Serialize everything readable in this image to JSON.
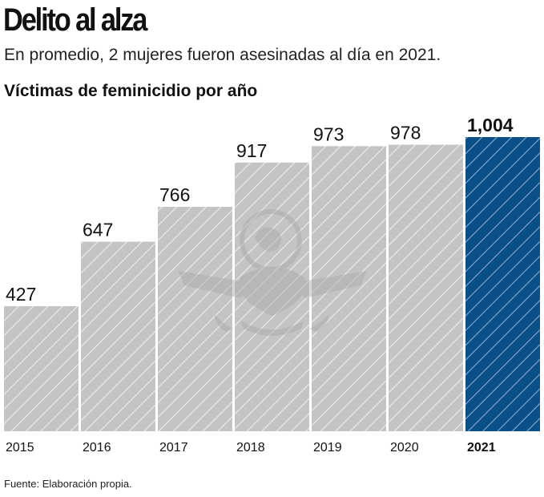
{
  "header": {
    "title": "Delito al alza",
    "subtitle": "En promedio, 2 mujeres fueron asesinadas al día en 2021.",
    "section_title": "Víctimas de feminicidio por año"
  },
  "footer": {
    "source": "Fuente: Elaboración propia."
  },
  "colors": {
    "bar_fill": "#c4c4c4",
    "bar_hatch": "#f2f2f2",
    "highlight_fill": "#0b4f89",
    "highlight_hatch": "#8fb4d6",
    "text": "#111111",
    "watermark": "#a9a9a9"
  },
  "watermark_icon": "mexican-eagle-seal",
  "chart_data": {
    "type": "bar",
    "title": "Víctimas de feminicidio por año",
    "categories": [
      "2015",
      "2016",
      "2017",
      "2018",
      "2019",
      "2020",
      "2021"
    ],
    "values": [
      427,
      647,
      766,
      917,
      973,
      978,
      1004
    ],
    "value_labels": [
      "427",
      "647",
      "766",
      "917",
      "973",
      "978",
      "1,004"
    ],
    "highlight": "2021",
    "xlabel": "",
    "ylabel": "",
    "ylim": [
      0,
      1004
    ],
    "grid": false,
    "legend": "none"
  }
}
